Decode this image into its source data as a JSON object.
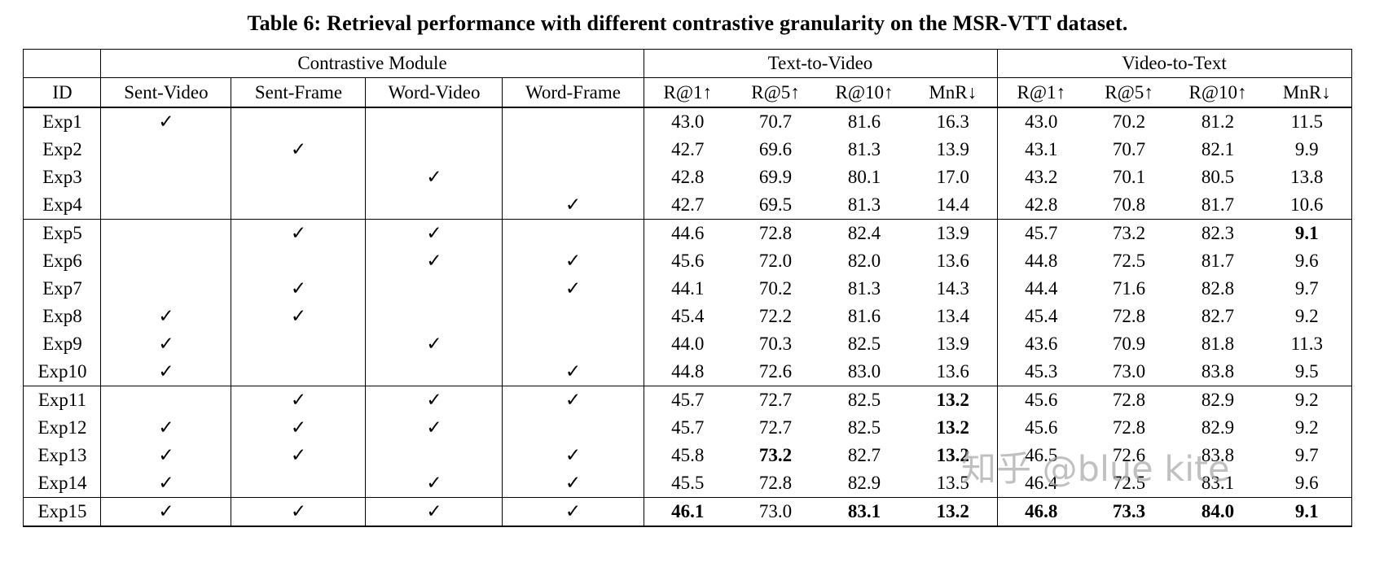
{
  "title": "Table 6: Retrieval performance with different contrastive granularity on the MSR-VTT dataset.",
  "watermark": "知乎 @blue kite",
  "check_glyph": "✓",
  "table": {
    "group_headers": [
      "",
      "Contrastive Module",
      "Text-to-Video",
      "Video-to-Text"
    ],
    "columns": [
      "ID",
      "Sent-Video",
      "Sent-Frame",
      "Word-Video",
      "Word-Frame",
      "R@1↑",
      "R@5↑",
      "R@10↑",
      "MnR↓",
      "R@1↑",
      "R@5↑",
      "R@10↑",
      "MnR↓"
    ],
    "group_end_after": [
      3,
      9,
      13
    ],
    "rows": [
      {
        "id": "Exp1",
        "checks": [
          1,
          0,
          0,
          0
        ],
        "values": [
          "43.0",
          "70.7",
          "81.6",
          "16.3",
          "43.0",
          "70.2",
          "81.2",
          "11.5"
        ],
        "bold": [
          0,
          0,
          0,
          0,
          0,
          0,
          0,
          0
        ]
      },
      {
        "id": "Exp2",
        "checks": [
          0,
          1,
          0,
          0
        ],
        "values": [
          "42.7",
          "69.6",
          "81.3",
          "13.9",
          "43.1",
          "70.7",
          "82.1",
          "9.9"
        ],
        "bold": [
          0,
          0,
          0,
          0,
          0,
          0,
          0,
          0
        ]
      },
      {
        "id": "Exp3",
        "checks": [
          0,
          0,
          1,
          0
        ],
        "values": [
          "42.8",
          "69.9",
          "80.1",
          "17.0",
          "43.2",
          "70.1",
          "80.5",
          "13.8"
        ],
        "bold": [
          0,
          0,
          0,
          0,
          0,
          0,
          0,
          0
        ]
      },
      {
        "id": "Exp4",
        "checks": [
          0,
          0,
          0,
          1
        ],
        "values": [
          "42.7",
          "69.5",
          "81.3",
          "14.4",
          "42.8",
          "70.8",
          "81.7",
          "10.6"
        ],
        "bold": [
          0,
          0,
          0,
          0,
          0,
          0,
          0,
          0
        ]
      },
      {
        "id": "Exp5",
        "checks": [
          0,
          1,
          1,
          0
        ],
        "values": [
          "44.6",
          "72.8",
          "82.4",
          "13.9",
          "45.7",
          "73.2",
          "82.3",
          "9.1"
        ],
        "bold": [
          0,
          0,
          0,
          0,
          0,
          0,
          0,
          1
        ]
      },
      {
        "id": "Exp6",
        "checks": [
          0,
          0,
          1,
          1
        ],
        "values": [
          "45.6",
          "72.0",
          "82.0",
          "13.6",
          "44.8",
          "72.5",
          "81.7",
          "9.6"
        ],
        "bold": [
          0,
          0,
          0,
          0,
          0,
          0,
          0,
          0
        ]
      },
      {
        "id": "Exp7",
        "checks": [
          0,
          1,
          0,
          1
        ],
        "values": [
          "44.1",
          "70.2",
          "81.3",
          "14.3",
          "44.4",
          "71.6",
          "82.8",
          "9.7"
        ],
        "bold": [
          0,
          0,
          0,
          0,
          0,
          0,
          0,
          0
        ]
      },
      {
        "id": "Exp8",
        "checks": [
          1,
          1,
          0,
          0
        ],
        "values": [
          "45.4",
          "72.2",
          "81.6",
          "13.4",
          "45.4",
          "72.8",
          "82.7",
          "9.2"
        ],
        "bold": [
          0,
          0,
          0,
          0,
          0,
          0,
          0,
          0
        ]
      },
      {
        "id": "Exp9",
        "checks": [
          1,
          0,
          1,
          0
        ],
        "values": [
          "44.0",
          "70.3",
          "82.5",
          "13.9",
          "43.6",
          "70.9",
          "81.8",
          "11.3"
        ],
        "bold": [
          0,
          0,
          0,
          0,
          0,
          0,
          0,
          0
        ]
      },
      {
        "id": "Exp10",
        "checks": [
          1,
          0,
          0,
          1
        ],
        "values": [
          "44.8",
          "72.6",
          "83.0",
          "13.6",
          "45.3",
          "73.0",
          "83.8",
          "9.5"
        ],
        "bold": [
          0,
          0,
          0,
          0,
          0,
          0,
          0,
          0
        ]
      },
      {
        "id": "Exp11",
        "checks": [
          0,
          1,
          1,
          1
        ],
        "values": [
          "45.7",
          "72.7",
          "82.5",
          "13.2",
          "45.6",
          "72.8",
          "82.9",
          "9.2"
        ],
        "bold": [
          0,
          0,
          0,
          1,
          0,
          0,
          0,
          0
        ]
      },
      {
        "id": "Exp12",
        "checks": [
          1,
          1,
          1,
          0
        ],
        "values": [
          "45.7",
          "72.7",
          "82.5",
          "13.2",
          "45.6",
          "72.8",
          "82.9",
          "9.2"
        ],
        "bold": [
          0,
          0,
          0,
          1,
          0,
          0,
          0,
          0
        ]
      },
      {
        "id": "Exp13",
        "checks": [
          1,
          1,
          0,
          1
        ],
        "values": [
          "45.8",
          "73.2",
          "82.7",
          "13.2",
          "46.5",
          "72.6",
          "83.8",
          "9.7"
        ],
        "bold": [
          0,
          1,
          0,
          1,
          0,
          0,
          0,
          0
        ]
      },
      {
        "id": "Exp14",
        "checks": [
          1,
          0,
          1,
          1
        ],
        "values": [
          "45.5",
          "72.8",
          "82.9",
          "13.5",
          "46.4",
          "72.5",
          "83.1",
          "9.6"
        ],
        "bold": [
          0,
          0,
          0,
          0,
          0,
          0,
          0,
          0
        ]
      },
      {
        "id": "Exp15",
        "checks": [
          1,
          1,
          1,
          1
        ],
        "values": [
          "46.1",
          "73.0",
          "83.1",
          "13.2",
          "46.8",
          "73.3",
          "84.0",
          "9.1"
        ],
        "bold": [
          1,
          0,
          1,
          1,
          1,
          1,
          1,
          1
        ]
      }
    ]
  }
}
